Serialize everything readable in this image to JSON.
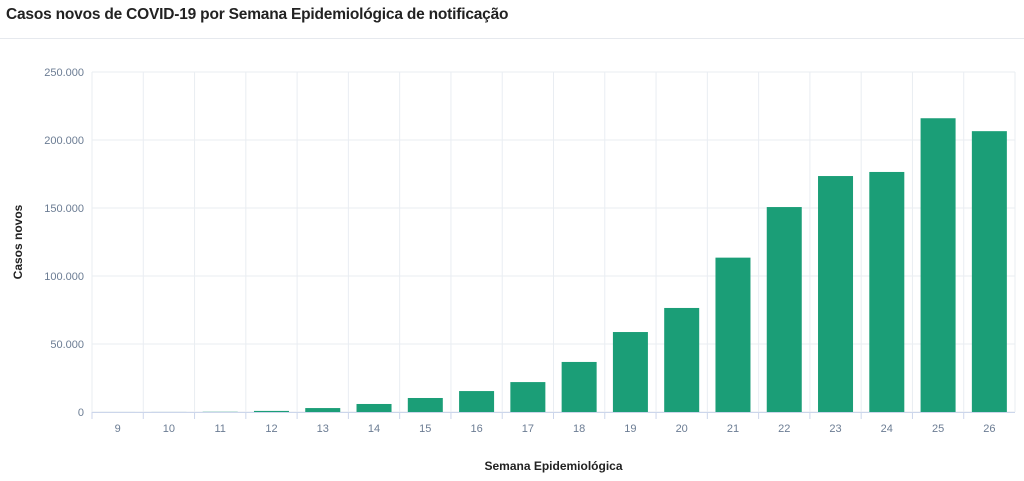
{
  "title": "Casos novos de COVID-19 por Semana Epidemiológica de notificação",
  "colors": {
    "bar": "#1b9e77",
    "grid": "#e9edf2",
    "tick": "#6b7c93"
  },
  "chart_data": {
    "type": "bar",
    "title": "Casos novos de COVID-19 por Semana Epidemiológica de notificação",
    "xlabel": "Semana Epidemiológica",
    "ylabel": "Casos novos",
    "ylim": [
      0,
      250000
    ],
    "yticks": [
      0,
      50000,
      100000,
      150000,
      200000,
      250000
    ],
    "ytick_labels": [
      "0",
      "50.000",
      "100.000",
      "150.000",
      "200.000",
      "250.000"
    ],
    "grid": true,
    "categories": [
      "9",
      "10",
      "11",
      "12",
      "13",
      "14",
      "15",
      "16",
      "17",
      "18",
      "19",
      "20",
      "21",
      "22",
      "23",
      "24",
      "25",
      "26"
    ],
    "values": [
      10,
      30,
      150,
      800,
      2900,
      5900,
      10300,
      15400,
      22000,
      36800,
      58800,
      76500,
      113500,
      150700,
      173500,
      176500,
      216000,
      206500
    ]
  }
}
